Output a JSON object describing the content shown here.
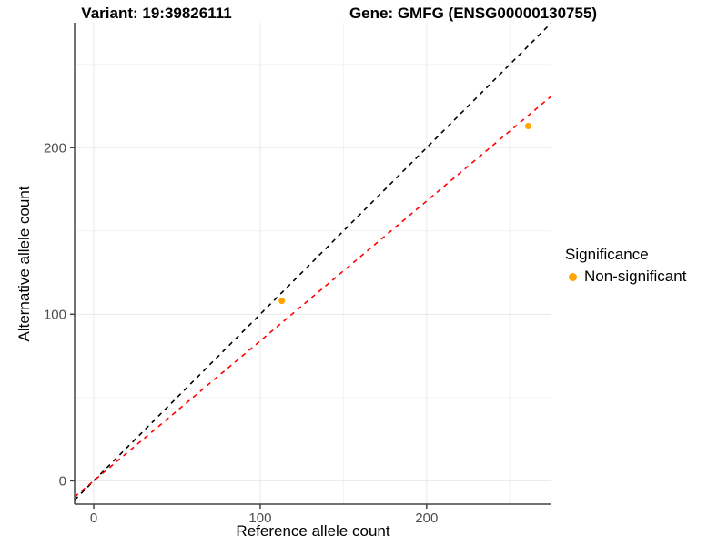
{
  "header": {
    "title_left": "Variant: 19:39826111",
    "title_right": "Gene: GMFG (ENSG00000130755)"
  },
  "colors": {
    "point": "#FFA500",
    "identity_line": "#000000",
    "fit_line": "#FF0000",
    "axis_line": "#444444",
    "tick_label": "#4d4d4d",
    "grid_major": "#e8e8e8",
    "grid_minor": "#f2f2f2",
    "background": "#ffffff"
  },
  "chart_data": {
    "type": "scatter",
    "title": "Variant: 19:39826111   Gene: GMFG (ENSG00000130755)",
    "xlabel": "Reference allele count",
    "ylabel": "Alternative allele count",
    "xlim": [
      -11.5,
      275
    ],
    "ylim": [
      -14,
      275
    ],
    "x_ticks": [
      0,
      100,
      200
    ],
    "y_ticks": [
      0,
      100,
      200
    ],
    "x_minor_ticks": [
      50,
      150,
      250
    ],
    "y_minor_ticks": [
      50,
      150,
      250
    ],
    "grid": "on",
    "points": [
      {
        "x": 113,
        "y": 108
      },
      {
        "x": 261,
        "y": 213
      }
    ],
    "point_color": "#FFA500",
    "lines": [
      {
        "name": "identity-line",
        "slope": 1.0,
        "intercept": 0,
        "color": "#000000",
        "style": "dashed"
      },
      {
        "name": "fit-line",
        "slope": 0.84,
        "intercept": 0,
        "color": "#FF0000",
        "style": "dashed"
      }
    ],
    "legend": {
      "title": "Significance",
      "position": "right",
      "entries": [
        {
          "label": "Non-significant",
          "color": "#FFA500"
        }
      ]
    }
  }
}
